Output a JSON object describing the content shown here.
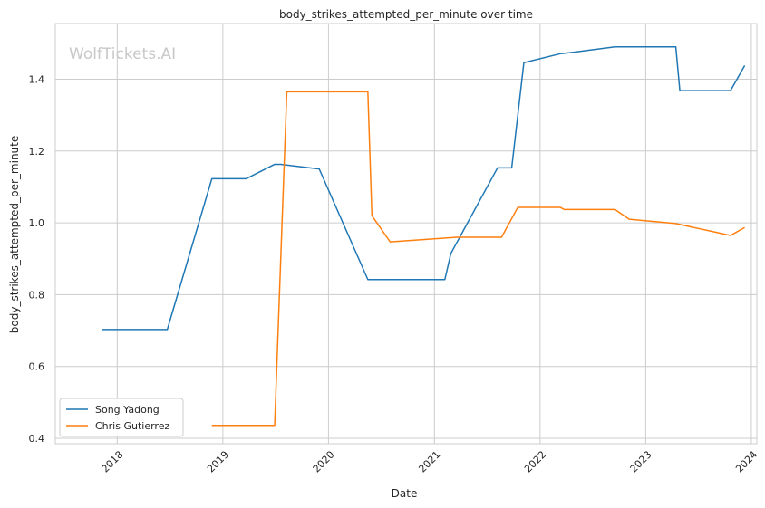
{
  "chart_data": {
    "type": "line",
    "title": "body_strikes_attempted_per_minute over time",
    "xlabel": "Date",
    "ylabel": "body_strikes_attempted_per_minute",
    "watermark": "WolfTickets.AI",
    "xlim": [
      "2017-06-01",
      "2024-01-20"
    ],
    "ylim": [
      0.385,
      1.555
    ],
    "x_ticks": [
      "2018-01-01",
      "2019-01-01",
      "2020-01-01",
      "2021-01-01",
      "2022-01-01",
      "2023-01-01",
      "2024-01-01"
    ],
    "x_tick_labels": [
      "2018",
      "2019",
      "2020",
      "2021",
      "2022",
      "2023",
      "2024"
    ],
    "y_ticks": [
      0.4,
      0.6,
      0.8,
      1.0,
      1.2,
      1.4
    ],
    "y_tick_labels": [
      "0.4",
      "0.6",
      "0.8",
      "1.0",
      "1.2",
      "1.4"
    ],
    "grid": true,
    "legend_position": "lower-left",
    "series": [
      {
        "name": "Song Yadong",
        "color": "#1f77b4",
        "points": [
          [
            "2017-11-11",
            0.703
          ],
          [
            "2018-06-23",
            0.703
          ],
          [
            "2018-11-24",
            1.123
          ],
          [
            "2019-03-23",
            1.123
          ],
          [
            "2019-06-29",
            1.163
          ],
          [
            "2019-07-20",
            1.163
          ],
          [
            "2019-11-30",
            1.15
          ],
          [
            "2020-05-16",
            0.842
          ],
          [
            "2021-02-06",
            0.842
          ],
          [
            "2021-02-27",
            0.915
          ],
          [
            "2021-08-07",
            1.153
          ],
          [
            "2021-09-25",
            1.153
          ],
          [
            "2021-11-06",
            1.446
          ],
          [
            "2022-03-12",
            1.471
          ],
          [
            "2022-03-26",
            1.472
          ],
          [
            "2022-09-17",
            1.49
          ],
          [
            "2023-04-15",
            1.49
          ],
          [
            "2023-04-29",
            1.368
          ],
          [
            "2023-10-21",
            1.368
          ],
          [
            "2023-12-09",
            1.438
          ]
        ]
      },
      {
        "name": "Chris Gutierrez",
        "color": "#ff7f0e",
        "points": [
          [
            "2018-11-24",
            0.436
          ],
          [
            "2019-06-29",
            0.436
          ],
          [
            "2019-08-10",
            1.365
          ],
          [
            "2020-05-16",
            1.365
          ],
          [
            "2020-05-30",
            1.02
          ],
          [
            "2020-08-01",
            0.947
          ],
          [
            "2021-03-20",
            0.96
          ],
          [
            "2021-08-21",
            0.96
          ],
          [
            "2021-10-16",
            1.043
          ],
          [
            "2022-03-12",
            1.043
          ],
          [
            "2022-03-26",
            1.037
          ],
          [
            "2022-09-17",
            1.037
          ],
          [
            "2022-11-05",
            1.01
          ],
          [
            "2023-04-15",
            0.998
          ],
          [
            "2023-10-21",
            0.965
          ],
          [
            "2023-12-09",
            0.987
          ]
        ]
      }
    ]
  }
}
